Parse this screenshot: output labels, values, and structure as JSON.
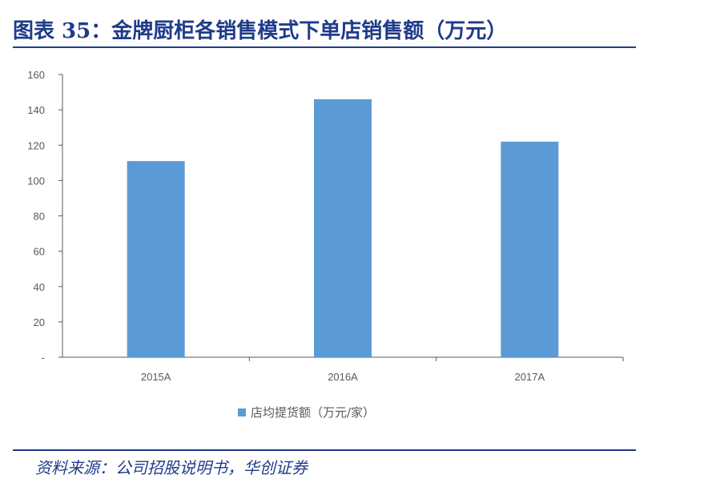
{
  "header": {
    "title": "图表 35：金牌厨柜各销售模式下单店销售额（万元）"
  },
  "footer": {
    "source": "资料来源：公司招股说明书，华创证券"
  },
  "colors": {
    "bar": "#5b9bd5",
    "brand": "#1f3c8a",
    "axis": "#595959"
  },
  "chart_data": {
    "type": "bar",
    "categories": [
      "2015A",
      "2016A",
      "2017A"
    ],
    "series": [
      {
        "name": "店均提货额（万元/家）",
        "values": [
          111,
          146,
          122
        ]
      }
    ],
    "ylim": [
      0,
      160
    ],
    "yticks": [
      0,
      20,
      40,
      60,
      80,
      100,
      120,
      140,
      160
    ],
    "ytick_labels": [
      "-",
      "20",
      "40",
      "60",
      "80",
      "100",
      "120",
      "140",
      "160"
    ],
    "grid": false,
    "legend_position": "bottom"
  }
}
